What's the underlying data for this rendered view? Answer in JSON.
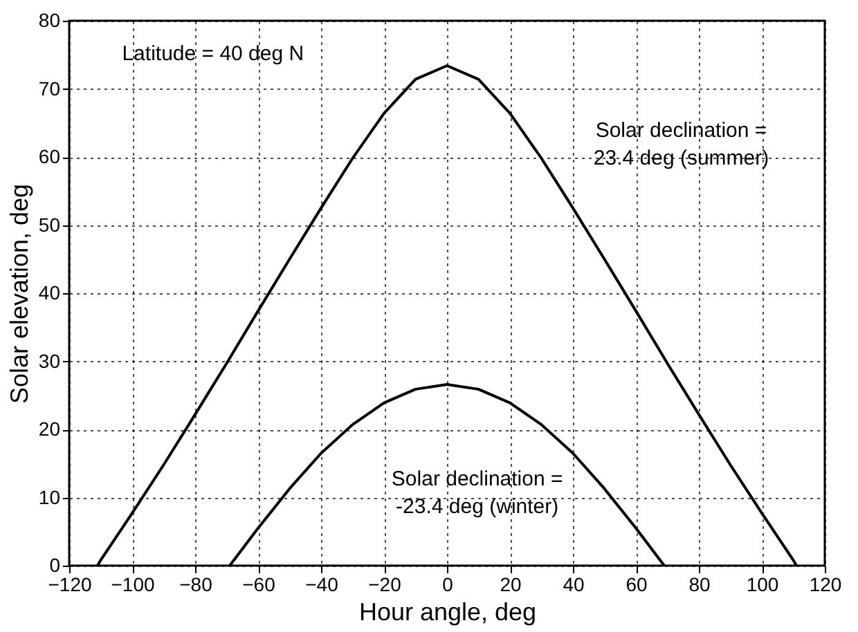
{
  "chart_data": {
    "type": "line",
    "xlabel": "Hour angle, deg",
    "ylabel": "Solar elevation, deg",
    "xlim": [
      -120,
      120
    ],
    "xticks": [
      -120,
      -100,
      -80,
      -60,
      -40,
      -20,
      0,
      20,
      40,
      60,
      80,
      100,
      120
    ],
    "ylim": [
      0,
      80
    ],
    "yticks": [
      0,
      10,
      20,
      30,
      40,
      50,
      60,
      70,
      80
    ],
    "grid": true,
    "marker": "none",
    "line_style": "solid",
    "series": [
      {
        "color": "#000000",
        "x": [
          -111,
          -110,
          -100,
          -90,
          -80,
          -70,
          -60,
          -50,
          -40,
          -30,
          -20,
          -10,
          0,
          10,
          20,
          30,
          40,
          50,
          60,
          70,
          80,
          90,
          100,
          110,
          111
        ],
        "values": [
          0,
          0.8,
          7.7,
          14.8,
          22.2,
          29.7,
          37.4,
          45,
          52.5,
          59.8,
          66.4,
          71.4,
          73.4,
          71.4,
          66.4,
          59.8,
          52.5,
          45,
          37.4,
          29.7,
          22.2,
          14.8,
          7.7,
          0.8,
          0
        ]
      },
      {
        "color": "#000000",
        "x": [
          -69,
          -60,
          -50,
          -40,
          -30,
          -20,
          -10,
          0,
          10,
          20,
          30,
          40,
          50,
          60,
          69
        ],
        "values": [
          0,
          5.5,
          11.3,
          16.5,
          20.7,
          23.9,
          25.9,
          26.6,
          25.9,
          23.9,
          20.7,
          16.5,
          11.3,
          5.5,
          0
        ]
      }
    ],
    "annotations": [
      "Latitude = 40 deg N",
      "Solar declination =\n23.4 deg (summer)",
      "Solar declination =\n-23.4 deg (winter)"
    ]
  }
}
